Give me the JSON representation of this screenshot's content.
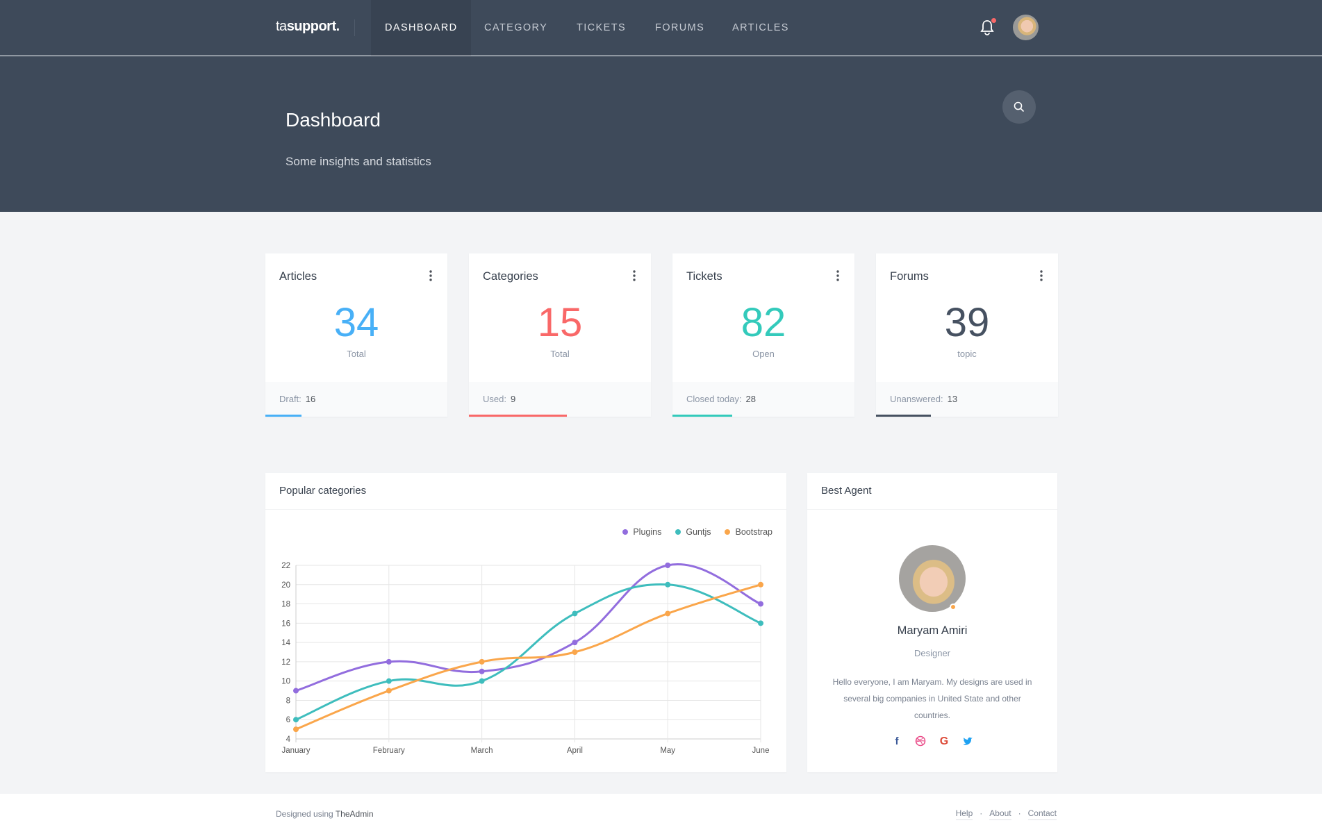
{
  "brand": {
    "prefix": "ta",
    "name": "support."
  },
  "nav": [
    "DASHBOARD",
    "CATEGORY",
    "TICKETS",
    "FORUMS",
    "ARTICLES"
  ],
  "header": {
    "title": "Dashboard",
    "subtitle": "Some insights and statistics"
  },
  "stats": [
    {
      "title": "Articles",
      "value": "34",
      "label": "Total",
      "foot_label": "Draft:",
      "foot_value": "16",
      "color": "#48b0f7",
      "progress": 0.2
    },
    {
      "title": "Categories",
      "value": "15",
      "label": "Total",
      "foot_label": "Used:",
      "foot_value": "9",
      "color": "#f96868",
      "progress": 0.54
    },
    {
      "title": "Tickets",
      "value": "82",
      "label": "Open",
      "foot_label": "Closed today:",
      "foot_value": "28",
      "color": "#33cabb",
      "progress": 0.33
    },
    {
      "title": "Forums",
      "value": "39",
      "label": "topic",
      "foot_label": "Unanswered:",
      "foot_value": "13",
      "color": "#465161",
      "progress": 0.3
    }
  ],
  "chart_card": {
    "title": "Popular categories"
  },
  "chart_data": {
    "type": "line",
    "title": "Popular categories",
    "categories": [
      "January",
      "February",
      "March",
      "April",
      "May",
      "June"
    ],
    "series": [
      {
        "name": "Plugins",
        "color": "#926dde",
        "values": [
          9,
          12,
          11,
          14,
          22,
          18
        ]
      },
      {
        "name": "Guntjs",
        "color": "#3ebdbd",
        "values": [
          6,
          10,
          10,
          17,
          20,
          16
        ]
      },
      {
        "name": "Bootstrap",
        "color": "#faa64b",
        "values": [
          5,
          9,
          12,
          13,
          17,
          20
        ]
      }
    ],
    "ylim": [
      4,
      22
    ],
    "yticks": [
      4,
      6,
      8,
      10,
      12,
      14,
      16,
      18,
      20,
      22
    ],
    "grid": true,
    "legend": "top-right"
  },
  "agent": {
    "card_title": "Best Agent",
    "name": "Maryam Amiri",
    "role": "Designer",
    "bio": "Hello everyone, I am Maryam. My designs are used in several big companies in United State and other countries."
  },
  "footer": {
    "prefix": "Designed using ",
    "link": "TheAdmin",
    "links": [
      "Help",
      "About",
      "Contact"
    ]
  }
}
